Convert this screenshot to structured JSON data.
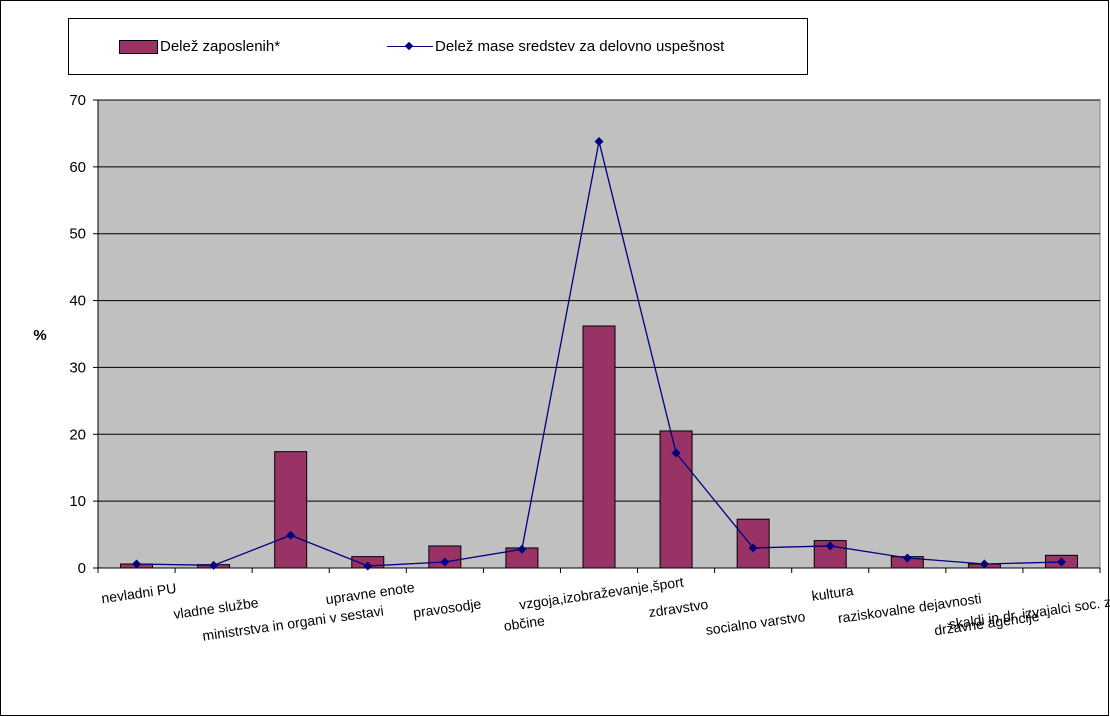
{
  "chart_data": {
    "type": "bar",
    "title": "",
    "xlabel": "",
    "ylabel": "%",
    "ylim": [
      0,
      70
    ],
    "yticks": [
      0,
      10,
      20,
      30,
      40,
      50,
      60,
      70
    ],
    "grid": true,
    "legend_position": "top",
    "categories": [
      "nevladni PU",
      "vladne službe",
      "ministrstva in organi v sestavi",
      "upravne enote",
      "pravosodje",
      "občine",
      "vzgoja,izobraževanje,šport",
      "zdravstvo",
      "socialno varstvo",
      "kultura",
      "raziskovalne dejavnosti",
      "državne agencije",
      "skaldi in dr. izvajalci soc. zavarovanja"
    ],
    "series": [
      {
        "name": "Delež zaposlenih*",
        "kind": "bar",
        "color": "#993366",
        "values": [
          0.6,
          0.5,
          17.4,
          1.7,
          3.3,
          3.0,
          36.2,
          20.5,
          7.3,
          4.1,
          1.7,
          0.6,
          1.9
        ]
      },
      {
        "name": "Delež mase sredstev za delovno uspešnost",
        "kind": "line",
        "color": "#000080",
        "values": [
          0.6,
          0.4,
          4.9,
          0.3,
          0.9,
          2.8,
          63.8,
          17.2,
          3.0,
          3.3,
          1.5,
          0.6,
          0.9
        ]
      }
    ]
  }
}
